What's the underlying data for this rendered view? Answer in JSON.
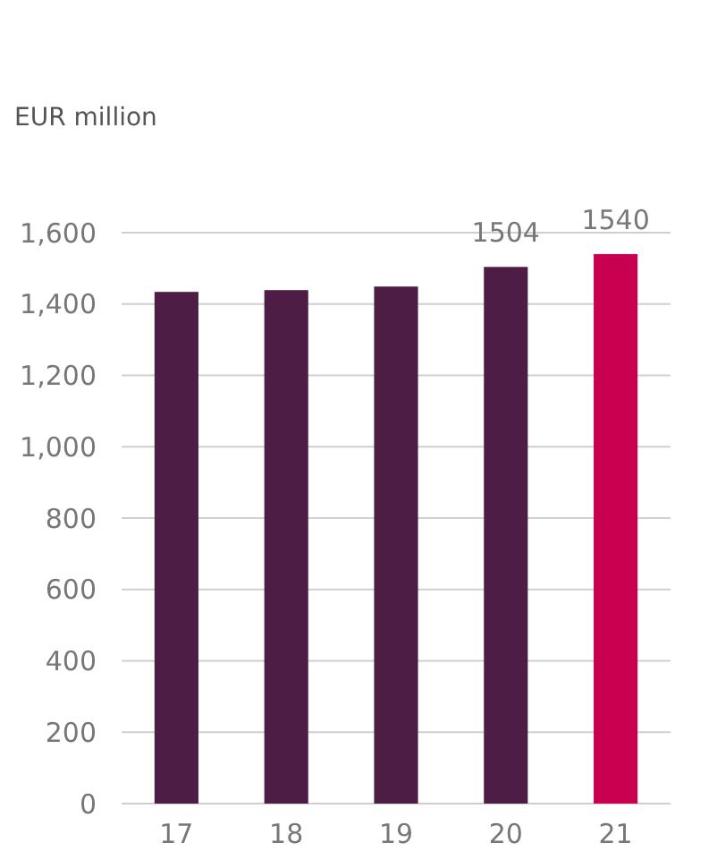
{
  "chart_data": {
    "type": "bar",
    "ylabel": "EUR  million",
    "categories": [
      "17",
      "18",
      "19",
      "20",
      "21"
    ],
    "values": [
      1434,
      1439,
      1449,
      1504,
      1540
    ],
    "colors": [
      "#4e1d45",
      "#4e1d45",
      "#4e1d45",
      "#4e1d45",
      "#c8004f"
    ],
    "value_labels": [
      null,
      null,
      null,
      "1504",
      "1540"
    ],
    "ylim": [
      0,
      1600
    ],
    "yticks": [
      {
        "value": 0,
        "label": "0"
      },
      {
        "value": 200,
        "label": "200"
      },
      {
        "value": 400,
        "label": "400"
      },
      {
        "value": 600,
        "label": "600"
      },
      {
        "value": 800,
        "label": "800"
      },
      {
        "value": 1000,
        "label": "1,000"
      },
      {
        "value": 1200,
        "label": "1,200"
      },
      {
        "value": 1400,
        "label": "1,400"
      },
      {
        "value": 1600,
        "label": "1,600"
      }
    ],
    "grid": "y"
  }
}
